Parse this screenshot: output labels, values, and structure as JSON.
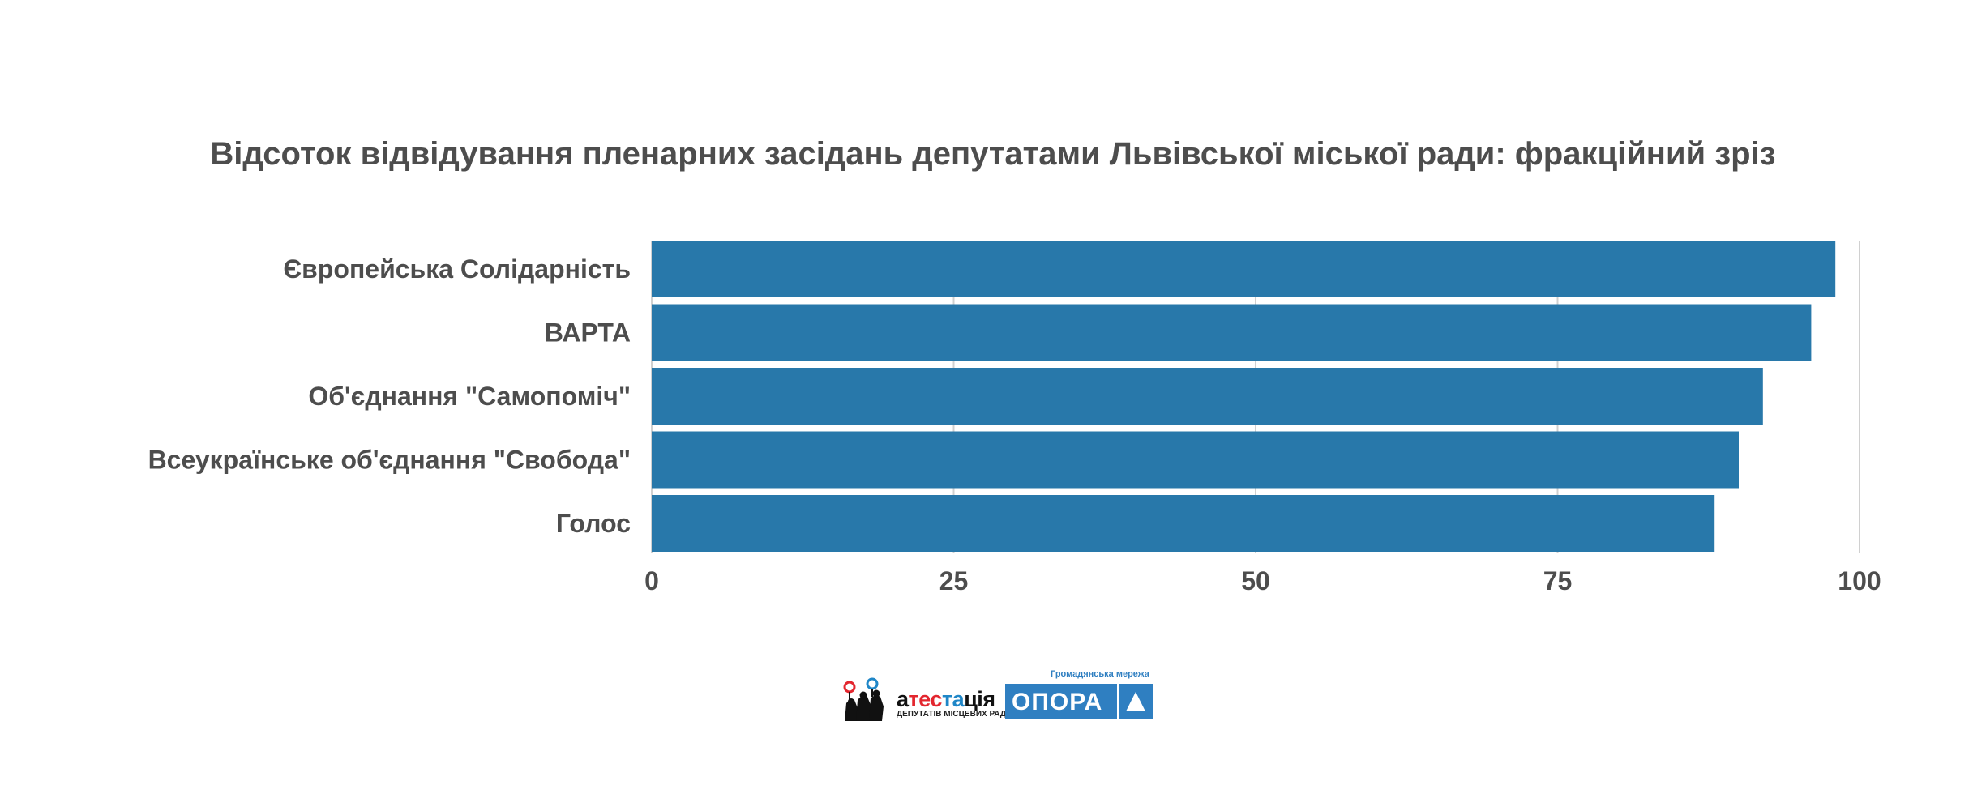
{
  "chart_data": {
    "type": "bar",
    "orientation": "horizontal",
    "title": "Відсоток відвідування пленарних засідань депутатами Львівської міської ради: фракційний зріз",
    "categories": [
      "Європейська Солідарність",
      "ВАРТА",
      "Об'єднання \"Самопоміч\"",
      "Всеукраїнське об'єднання \"Свобода\"",
      "Голос"
    ],
    "values": [
      98,
      96,
      92,
      90,
      88
    ],
    "xlim": [
      0,
      100
    ],
    "xticks": [
      0,
      25,
      50,
      75,
      100
    ],
    "grid": true,
    "bar_color": "#2878aa",
    "legend": "none"
  },
  "logos": {
    "atestatsiya": {
      "word_a": "а",
      "word_tes": "тес",
      "word_ta": "та",
      "word_tsiya": "ція",
      "subtitle": "ДЕПУТАТІВ МІСЦЕВИХ РАД",
      "red": "#e3262e",
      "blue": "#1f86c7"
    },
    "opora": {
      "tagline": "Громадянська мережа",
      "word": "ОПОРА",
      "color": "#2f7fc1"
    }
  }
}
